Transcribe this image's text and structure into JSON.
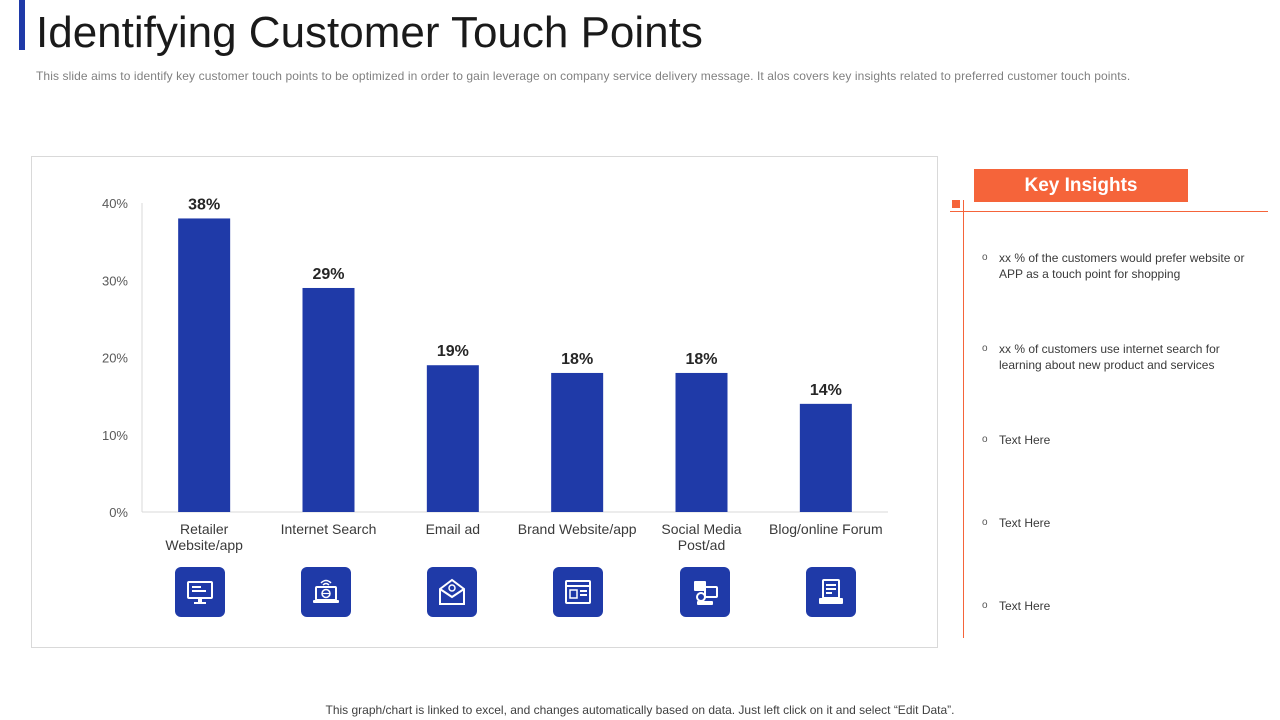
{
  "header": {
    "title": "Identifying Customer Touch Points",
    "subtitle": "This slide aims to identify key customer touch points to be optimized in order to gain leverage  on company service delivery  message. It alos covers  key insights related to preferred  customer touch points."
  },
  "chart_data": {
    "type": "bar",
    "categories": [
      "Retailer Website/app",
      "Internet Search",
      "Email ad",
      "Brand Website/app",
      "Social Media Post/ad",
      "Blog/online Forum"
    ],
    "category_lines": [
      [
        "Retailer",
        "Website/app"
      ],
      [
        "Internet Search"
      ],
      [
        "Email ad"
      ],
      [
        "Brand Website/app"
      ],
      [
        "Social Media",
        "Post/ad"
      ],
      [
        "Blog/online Forum"
      ]
    ],
    "values": [
      38,
      29,
      19,
      18,
      18,
      14
    ],
    "data_labels": [
      "38%",
      "29%",
      "19%",
      "18%",
      "18%",
      "14%"
    ],
    "yticks": [
      0,
      10,
      20,
      30,
      40
    ],
    "ytick_labels": [
      "0%",
      "10%",
      "20%",
      "30%",
      "40%"
    ],
    "ylim": [
      0,
      40
    ],
    "title": "",
    "xlabel": "",
    "ylabel": "",
    "grid": false,
    "bar_color": "#1f3aa8",
    "icons": [
      "monitor-icon",
      "globe-laptop-icon",
      "envelope-icon",
      "browser-icon",
      "social-media-icon",
      "blog-icon"
    ]
  },
  "insights": {
    "header": "Key Insights",
    "items": [
      "xx % of the customers would prefer website or APP as a touch point for shopping",
      "xx % of customers use internet search for learning about new product and services",
      "Text Here",
      "Text Here",
      "Text Here"
    ]
  },
  "footer": {
    "note": "This graph/chart is linked to excel,  and changes automatically based on data. Just left click on it and select “Edit Data”."
  },
  "colors": {
    "accent_blue": "#1f3aa8",
    "accent_orange": "#f5643a"
  }
}
